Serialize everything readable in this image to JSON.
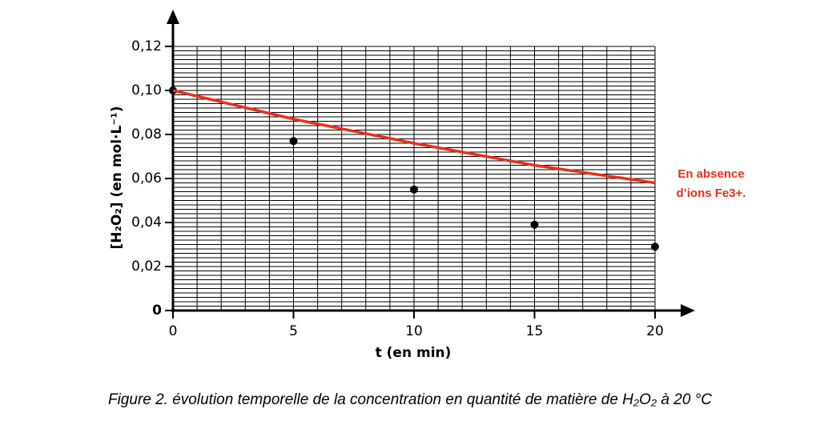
{
  "chart_data": {
    "type": "scatter",
    "xlabel": "t (en min)",
    "ylabel": "[H₂O₂] (en mol·L⁻¹)",
    "caption": "Figure 2. évolution temporelle de la concentration en quantité de matière de H₂O₂ à 20 °C",
    "annotation": [
      "En absence",
      "d’ions Fe3+."
    ],
    "xlim": [
      0,
      20
    ],
    "ylim": [
      0,
      0.12
    ],
    "xticks": [
      0,
      5,
      10,
      15,
      20
    ],
    "yticks": [
      0,
      {
        "value": 0.02,
        "label": "0,02"
      },
      {
        "value": 0.04,
        "label": "0,04"
      },
      {
        "value": 0.06,
        "label": "0,06"
      },
      {
        "value": 0.08,
        "label": "0,08"
      },
      {
        "value": 0.1,
        "label": "0,10"
      },
      {
        "value": 0.12,
        "label": "0,12"
      }
    ],
    "grid": true,
    "x_minor_step": 1,
    "y_minor_step": 0.002,
    "series": [
      {
        "mode": "markers",
        "color": "#000000",
        "x": [
          0,
          5,
          10,
          15,
          20
        ],
        "values": [
          0.1,
          0.077,
          0.055,
          0.039,
          0.029
        ]
      },
      {
        "mode": "line",
        "color": "#e8301c",
        "x": [
          0,
          5,
          10,
          15,
          20
        ],
        "values": [
          0.1,
          0.087,
          0.076,
          0.066,
          0.058
        ]
      }
    ]
  }
}
